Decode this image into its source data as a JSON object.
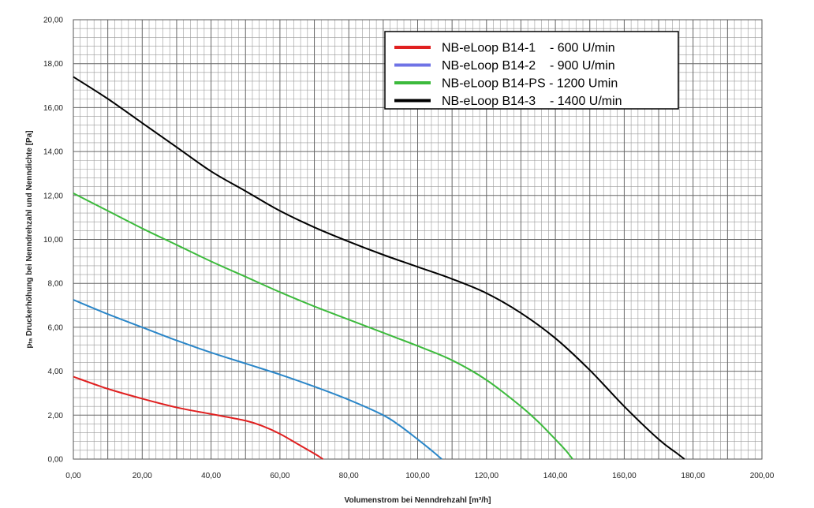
{
  "chart_data": {
    "type": "line",
    "xlabel": "Volumenstrom bei Nenndrehzahl [m³/h]",
    "ylabel": "pₜₐ Druckerhöhung bei Nenndrehzahl und Nenndichte [Pa]",
    "xlim": [
      0,
      200
    ],
    "ylim": [
      0,
      20
    ],
    "x_ticks": [
      "0,00",
      "20,00",
      "40,00",
      "60,00",
      "80,00",
      "100,00",
      "120,00",
      "140,00",
      "160,00",
      "180,00",
      "200,00"
    ],
    "y_ticks": [
      "0,00",
      "2,00",
      "4,00",
      "6,00",
      "8,00",
      "10,00",
      "12,00",
      "14,00",
      "16,00",
      "18,00",
      "20,00"
    ],
    "grid": true,
    "legend_position": "top-right",
    "legend": [
      {
        "label": "NB-eLoop B14-1    - 600 U/min",
        "color": "#e02020"
      },
      {
        "label": "NB-eLoop B14-2    - 900 U/min",
        "color": "#6f73e6"
      },
      {
        "label": "NB-eLoop B14-PS - 1200 Umin",
        "color": "#3cba3c"
      },
      {
        "label": "NB-eLoop B14-3    - 1400 U/min",
        "color": "#000000"
      }
    ],
    "series": [
      {
        "name": "NB-eLoop B14-1    - 600 U/min",
        "color": "#e02020",
        "x": [
          0,
          10,
          20,
          30,
          40,
          50,
          55,
          60,
          65,
          70,
          72.5
        ],
        "y": [
          3.75,
          3.2,
          2.75,
          2.35,
          2.05,
          1.75,
          1.5,
          1.15,
          0.7,
          0.25,
          0
        ]
      },
      {
        "name": "NB-eLoop B14-2    - 900 U/min",
        "color": "#2a86c8",
        "x": [
          0,
          10,
          20,
          30,
          40,
          50,
          60,
          70,
          80,
          90,
          95,
          100,
          104,
          107
        ],
        "y": [
          7.25,
          6.6,
          6.0,
          5.4,
          4.85,
          4.35,
          3.85,
          3.3,
          2.7,
          2.0,
          1.5,
          0.9,
          0.4,
          0
        ]
      },
      {
        "name": "NB-eLoop B14-PS - 1200 Umin",
        "color": "#3cba3c",
        "x": [
          0,
          10,
          20,
          30,
          40,
          50,
          60,
          70,
          80,
          90,
          100,
          110,
          120,
          130,
          135,
          140,
          143,
          145
        ],
        "y": [
          12.1,
          11.3,
          10.5,
          9.75,
          9.0,
          8.3,
          7.6,
          6.95,
          6.35,
          5.75,
          5.15,
          4.5,
          3.6,
          2.4,
          1.7,
          0.9,
          0.4,
          0
        ]
      },
      {
        "name": "NB-eLoop B14-3    - 1400 U/min",
        "color": "#000000",
        "x": [
          0,
          10,
          20,
          30,
          40,
          50,
          60,
          70,
          80,
          90,
          100,
          110,
          120,
          130,
          140,
          150,
          160,
          170,
          175,
          177.5
        ],
        "y": [
          17.4,
          16.4,
          15.3,
          14.2,
          13.1,
          12.2,
          11.3,
          10.55,
          9.9,
          9.3,
          8.75,
          8.2,
          7.55,
          6.65,
          5.5,
          4.05,
          2.4,
          0.9,
          0.3,
          0
        ]
      }
    ]
  }
}
